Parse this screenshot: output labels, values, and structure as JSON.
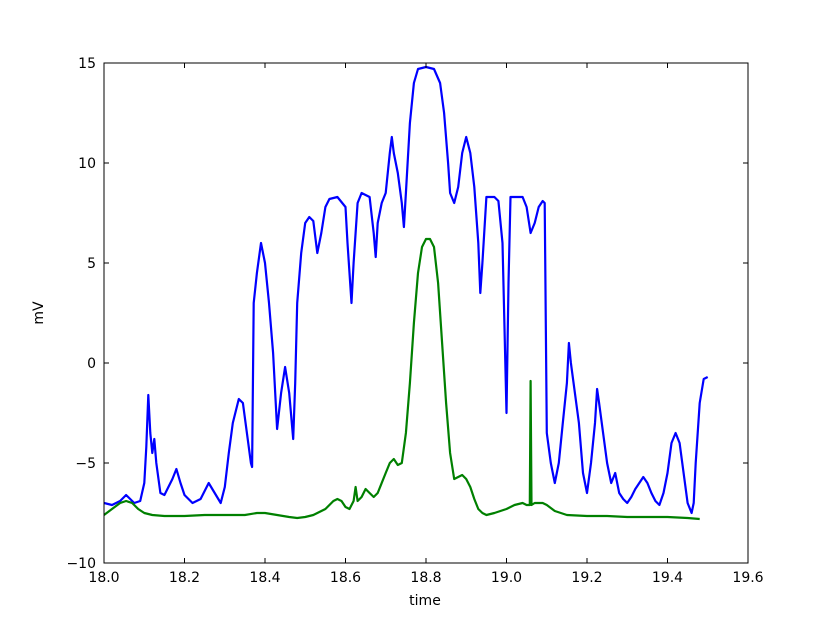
{
  "chart_data": {
    "type": "line",
    "title": "",
    "xlabel": "time",
    "ylabel": "mV",
    "xlim": [
      18.0,
      19.6
    ],
    "ylim": [
      -10,
      15
    ],
    "xticks": [
      "18.0",
      "18.2",
      "18.4",
      "18.6",
      "18.8",
      "19.0",
      "19.2",
      "19.4",
      "19.6"
    ],
    "yticks": [
      "−10",
      "−5",
      "0",
      "5",
      "10",
      "15"
    ],
    "grid": false,
    "legend": "none",
    "series": [
      {
        "color": "#0000ff",
        "points": [
          [
            18.0,
            -7.0
          ],
          [
            18.02,
            -7.1
          ],
          [
            18.04,
            -6.9
          ],
          [
            18.055,
            -6.6
          ],
          [
            18.065,
            -6.8
          ],
          [
            18.075,
            -7.0
          ],
          [
            18.09,
            -6.9
          ],
          [
            18.1,
            -6.0
          ],
          [
            18.105,
            -4.2
          ],
          [
            18.11,
            -1.6
          ],
          [
            18.115,
            -3.5
          ],
          [
            18.12,
            -4.5
          ],
          [
            18.125,
            -3.8
          ],
          [
            18.13,
            -5.0
          ],
          [
            18.14,
            -6.5
          ],
          [
            18.15,
            -6.6
          ],
          [
            18.16,
            -6.2
          ],
          [
            18.17,
            -5.8
          ],
          [
            18.18,
            -5.3
          ],
          [
            18.19,
            -6.0
          ],
          [
            18.2,
            -6.6
          ],
          [
            18.21,
            -6.8
          ],
          [
            18.22,
            -7.0
          ],
          [
            18.24,
            -6.8
          ],
          [
            18.26,
            -6.0
          ],
          [
            18.275,
            -6.5
          ],
          [
            18.29,
            -7.0
          ],
          [
            18.3,
            -6.2
          ],
          [
            18.31,
            -4.5
          ],
          [
            18.32,
            -3.0
          ],
          [
            18.335,
            -1.8
          ],
          [
            18.345,
            -2.0
          ],
          [
            18.355,
            -3.5
          ],
          [
            18.365,
            -5.0
          ],
          [
            18.368,
            -5.2
          ],
          [
            18.372,
            3.0
          ],
          [
            18.38,
            4.5
          ],
          [
            18.39,
            6.0
          ],
          [
            18.4,
            5.0
          ],
          [
            18.41,
            3.0
          ],
          [
            18.42,
            0.5
          ],
          [
            18.43,
            -3.3
          ],
          [
            18.44,
            -1.5
          ],
          [
            18.45,
            -0.2
          ],
          [
            18.46,
            -1.5
          ],
          [
            18.47,
            -3.8
          ],
          [
            18.475,
            -1.0
          ],
          [
            18.48,
            3.0
          ],
          [
            18.49,
            5.5
          ],
          [
            18.5,
            7.0
          ],
          [
            18.51,
            7.3
          ],
          [
            18.52,
            7.1
          ],
          [
            18.53,
            5.5
          ],
          [
            18.54,
            6.5
          ],
          [
            18.55,
            7.8
          ],
          [
            18.56,
            8.2
          ],
          [
            18.58,
            8.3
          ],
          [
            18.6,
            7.8
          ],
          [
            18.605,
            6.0
          ],
          [
            18.615,
            3.0
          ],
          [
            18.62,
            5.0
          ],
          [
            18.63,
            8.0
          ],
          [
            18.64,
            8.5
          ],
          [
            18.66,
            8.3
          ],
          [
            18.67,
            6.5
          ],
          [
            18.675,
            5.3
          ],
          [
            18.68,
            7.0
          ],
          [
            18.69,
            8.0
          ],
          [
            18.7,
            8.5
          ],
          [
            18.71,
            10.5
          ],
          [
            18.715,
            11.3
          ],
          [
            18.72,
            10.5
          ],
          [
            18.73,
            9.5
          ],
          [
            18.74,
            8.0
          ],
          [
            18.745,
            6.8
          ],
          [
            18.75,
            8.5
          ],
          [
            18.76,
            12.0
          ],
          [
            18.77,
            14.0
          ],
          [
            18.78,
            14.7
          ],
          [
            18.8,
            14.8
          ],
          [
            18.82,
            14.7
          ],
          [
            18.835,
            14.0
          ],
          [
            18.845,
            12.5
          ],
          [
            18.855,
            10.0
          ],
          [
            18.86,
            8.5
          ],
          [
            18.87,
            8.0
          ],
          [
            18.88,
            8.8
          ],
          [
            18.89,
            10.5
          ],
          [
            18.9,
            11.3
          ],
          [
            18.91,
            10.5
          ],
          [
            18.92,
            8.8
          ],
          [
            18.93,
            6.0
          ],
          [
            18.935,
            3.5
          ],
          [
            18.94,
            5.0
          ],
          [
            18.95,
            8.3
          ],
          [
            18.96,
            8.3
          ],
          [
            18.97,
            8.3
          ],
          [
            18.98,
            8.1
          ],
          [
            18.99,
            6.0
          ],
          [
            19.0,
            -2.5
          ],
          [
            19.005,
            4.0
          ],
          [
            19.01,
            8.3
          ],
          [
            19.02,
            8.3
          ],
          [
            19.04,
            8.3
          ],
          [
            19.05,
            7.8
          ],
          [
            19.06,
            6.5
          ],
          [
            19.07,
            7.0
          ],
          [
            19.08,
            7.8
          ],
          [
            19.09,
            8.1
          ],
          [
            19.095,
            8.0
          ],
          [
            19.1,
            -3.5
          ],
          [
            19.11,
            -5.0
          ],
          [
            19.12,
            -6.0
          ],
          [
            19.13,
            -5.0
          ],
          [
            19.14,
            -3.0
          ],
          [
            19.15,
            -1.0
          ],
          [
            19.155,
            1.0
          ],
          [
            19.16,
            0.0
          ],
          [
            19.17,
            -1.5
          ],
          [
            19.18,
            -3.0
          ],
          [
            19.19,
            -5.5
          ],
          [
            19.2,
            -6.5
          ],
          [
            19.21,
            -5.0
          ],
          [
            19.22,
            -3.0
          ],
          [
            19.225,
            -1.3
          ],
          [
            19.23,
            -2.0
          ],
          [
            19.24,
            -3.5
          ],
          [
            19.25,
            -5.0
          ],
          [
            19.26,
            -6.0
          ],
          [
            19.27,
            -5.5
          ],
          [
            19.28,
            -6.5
          ],
          [
            19.29,
            -6.8
          ],
          [
            19.3,
            -7.0
          ],
          [
            19.31,
            -6.7
          ],
          [
            19.32,
            -6.3
          ],
          [
            19.33,
            -6.0
          ],
          [
            19.34,
            -5.7
          ],
          [
            19.35,
            -6.0
          ],
          [
            19.36,
            -6.5
          ],
          [
            19.37,
            -6.9
          ],
          [
            19.38,
            -7.1
          ],
          [
            19.39,
            -6.5
          ],
          [
            19.4,
            -5.5
          ],
          [
            19.41,
            -4.0
          ],
          [
            19.42,
            -3.5
          ],
          [
            19.43,
            -4.0
          ],
          [
            19.44,
            -5.5
          ],
          [
            19.45,
            -7.0
          ],
          [
            19.46,
            -7.5
          ],
          [
            19.465,
            -7.0
          ],
          [
            19.47,
            -5.0
          ],
          [
            19.48,
            -2.0
          ],
          [
            19.49,
            -0.8
          ],
          [
            19.5,
            -0.7
          ]
        ]
      },
      {
        "color": "#008000",
        "points": [
          [
            18.0,
            -7.6
          ],
          [
            18.02,
            -7.3
          ],
          [
            18.04,
            -7.0
          ],
          [
            18.055,
            -6.9
          ],
          [
            18.07,
            -7.0
          ],
          [
            18.085,
            -7.3
          ],
          [
            18.1,
            -7.5
          ],
          [
            18.12,
            -7.6
          ],
          [
            18.15,
            -7.65
          ],
          [
            18.2,
            -7.65
          ],
          [
            18.25,
            -7.6
          ],
          [
            18.3,
            -7.6
          ],
          [
            18.35,
            -7.6
          ],
          [
            18.38,
            -7.5
          ],
          [
            18.4,
            -7.5
          ],
          [
            18.43,
            -7.6
          ],
          [
            18.46,
            -7.7
          ],
          [
            18.48,
            -7.75
          ],
          [
            18.5,
            -7.7
          ],
          [
            18.52,
            -7.6
          ],
          [
            18.55,
            -7.3
          ],
          [
            18.57,
            -6.9
          ],
          [
            18.58,
            -6.8
          ],
          [
            18.59,
            -6.9
          ],
          [
            18.6,
            -7.2
          ],
          [
            18.61,
            -7.3
          ],
          [
            18.62,
            -6.9
          ],
          [
            18.625,
            -6.2
          ],
          [
            18.63,
            -6.9
          ],
          [
            18.64,
            -6.7
          ],
          [
            18.65,
            -6.3
          ],
          [
            18.66,
            -6.5
          ],
          [
            18.67,
            -6.7
          ],
          [
            18.68,
            -6.5
          ],
          [
            18.7,
            -5.5
          ],
          [
            18.71,
            -5.0
          ],
          [
            18.72,
            -4.8
          ],
          [
            18.73,
            -5.1
          ],
          [
            18.74,
            -5.0
          ],
          [
            18.75,
            -3.5
          ],
          [
            18.76,
            -1.0
          ],
          [
            18.77,
            2.0
          ],
          [
            18.78,
            4.5
          ],
          [
            18.79,
            5.8
          ],
          [
            18.8,
            6.2
          ],
          [
            18.81,
            6.2
          ],
          [
            18.82,
            5.8
          ],
          [
            18.83,
            4.0
          ],
          [
            18.84,
            1.0
          ],
          [
            18.85,
            -2.0
          ],
          [
            18.86,
            -4.5
          ],
          [
            18.87,
            -5.8
          ],
          [
            18.88,
            -5.7
          ],
          [
            18.89,
            -5.6
          ],
          [
            18.9,
            -5.8
          ],
          [
            18.91,
            -6.2
          ],
          [
            18.92,
            -6.8
          ],
          [
            18.93,
            -7.3
          ],
          [
            18.94,
            -7.5
          ],
          [
            18.95,
            -7.6
          ],
          [
            18.97,
            -7.5
          ],
          [
            19.0,
            -7.3
          ],
          [
            19.02,
            -7.1
          ],
          [
            19.04,
            -7.0
          ],
          [
            19.05,
            -7.1
          ],
          [
            19.058,
            -7.1
          ],
          [
            19.06,
            -0.9
          ],
          [
            19.062,
            -7.1
          ],
          [
            19.07,
            -7.0
          ],
          [
            19.09,
            -7.0
          ],
          [
            19.1,
            -7.1
          ],
          [
            19.12,
            -7.4
          ],
          [
            19.15,
            -7.6
          ],
          [
            19.2,
            -7.65
          ],
          [
            19.25,
            -7.65
          ],
          [
            19.3,
            -7.7
          ],
          [
            19.35,
            -7.7
          ],
          [
            19.4,
            -7.7
          ],
          [
            19.45,
            -7.75
          ],
          [
            19.48,
            -7.8
          ]
        ]
      }
    ]
  }
}
